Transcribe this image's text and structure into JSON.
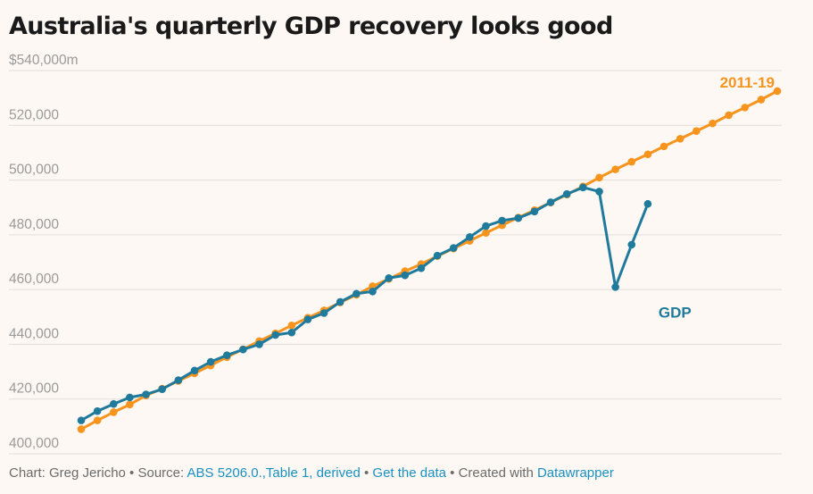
{
  "title": "Australia's quarterly GDP recovery looks good",
  "footer": {
    "chart_by": "Chart: Greg Jericho",
    "sep1": " • ",
    "source_prefix": "Source: ",
    "source_link": "ABS 5206.0.,Table 1, derived",
    "sep2": " • ",
    "data_link": "Get the data",
    "sep3": " • ",
    "created_prefix": "Created with ",
    "created_link": "Datawrapper"
  },
  "colors": {
    "trend": "#f7941d",
    "gdp": "#1f7a9c",
    "grid": "#e3ded9",
    "background": "#fdf8f4"
  },
  "chart_data": {
    "type": "line",
    "title": "Australia's quarterly GDP recovery looks good",
    "xlabel": "",
    "ylabel": "",
    "ylim": [
      400000,
      540000
    ],
    "yticks": [
      400000,
      420000,
      440000,
      460000,
      480000,
      500000,
      520000,
      540000
    ],
    "ytick_labels": [
      "400,000",
      "420,000",
      "440,000",
      "460,000",
      "480,000",
      "500,000",
      "520,000",
      "$540,000m"
    ],
    "grid": true,
    "series": [
      {
        "name": "2011-19",
        "color": "#f7941d",
        "values": [
          409000,
          412200,
          415200,
          418000,
          421300,
          423800,
          426600,
          429400,
          432300,
          435300,
          438200,
          441200,
          444000,
          446900,
          449700,
          452400,
          455300,
          458100,
          461200,
          463900,
          466700,
          469300,
          472200,
          475000,
          477800,
          480700,
          483500,
          486300,
          489000,
          491800,
          494700,
          497700,
          500900,
          503900,
          506700,
          509400,
          512300,
          515100,
          517900,
          520700,
          523700,
          526500,
          529400,
          532500
        ]
      },
      {
        "name": "GDP",
        "color": "#1f7a9c",
        "values": [
          412200,
          415600,
          418200,
          420600,
          421700,
          423600,
          426900,
          430400,
          433600,
          436000,
          438100,
          440000,
          443400,
          444300,
          449100,
          451400,
          455500,
          458500,
          459300,
          464200,
          465200,
          467800,
          472400,
          475200,
          479200,
          483200,
          485200,
          486100,
          488500,
          491900,
          494900,
          497300,
          495800,
          460900,
          476400,
          491300
        ]
      }
    ]
  }
}
